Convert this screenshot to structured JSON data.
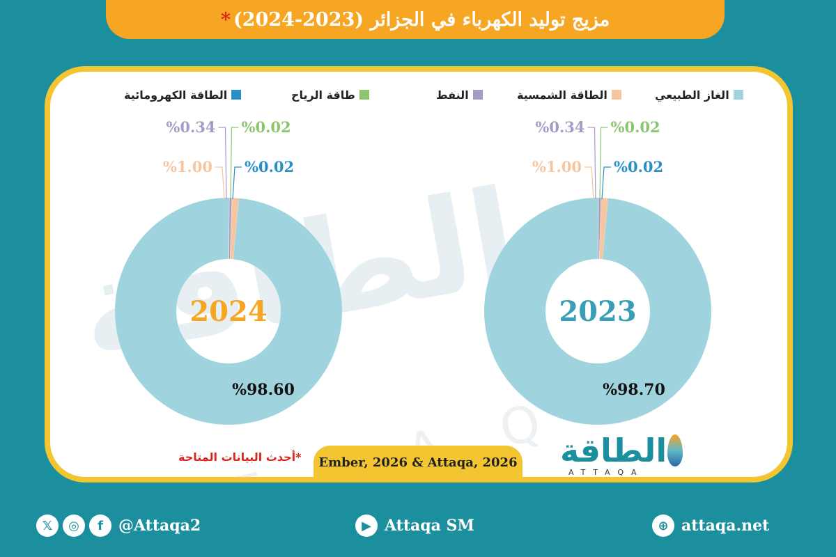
{
  "title": "مزيج توليد الكهرباء في الجزائر (2023-2024)",
  "title_star": "*",
  "legend": [
    {
      "label": "الغاز الطبيعي",
      "color": "#9fd4df"
    },
    {
      "label": "الطاقة الشمسية",
      "color": "#f7c6a0"
    },
    {
      "label": "النفط",
      "color": "#a59bc7"
    },
    {
      "label": "طاقة الرياح",
      "color": "#8cc56f"
    },
    {
      "label": "الطاقة الكهرومائية",
      "color": "#2a8fc5"
    }
  ],
  "colors": {
    "gas": "#9fd4df",
    "solar": "#f7c6a0",
    "oil": "#a59bc7",
    "wind": "#8cc56f",
    "hydro": "#2a8fc5",
    "year2023": "#3a9fb5",
    "year2024": "#f6a623"
  },
  "chart_data": [
    {
      "type": "pie",
      "center_label": "2023",
      "categories": [
        "الغاز الطبيعي",
        "الطاقة الشمسية",
        "النفط",
        "طاقة الرياح",
        "الطاقة الكهرومائية"
      ],
      "values": [
        98.7,
        1.0,
        0.34,
        0.02,
        0.02
      ],
      "labels": [
        "%98.70",
        "%1.00",
        "%0.34",
        "%0.02",
        "%0.02"
      ]
    },
    {
      "type": "pie",
      "center_label": "2024",
      "categories": [
        "الغاز الطبيعي",
        "الطاقة الشمسية",
        "النفط",
        "طاقة الرياح",
        "الطاقة الكهرومائية"
      ],
      "values": [
        98.6,
        1.0,
        0.34,
        0.02,
        0.02
      ],
      "labels": [
        "%98.60",
        "%1.00",
        "%0.34",
        "%0.02",
        "%0.02"
      ]
    }
  ],
  "source": "Ember, 2026 & Attaqa, 2026",
  "note": "*أحدث البيانات المتاحة",
  "logo": {
    "arabic": "الطاقة",
    "latin": "ATTAQA"
  },
  "watermark": {
    "arabic": "الطاقة",
    "latin": "ATTAQ"
  },
  "social": {
    "handle": "@Attaqa2",
    "youtube": "Attaqa SM",
    "website": "attaqa.net",
    "icons": [
      "x-icon",
      "instagram-icon",
      "facebook-icon",
      "youtube-icon",
      "globe-icon"
    ]
  }
}
